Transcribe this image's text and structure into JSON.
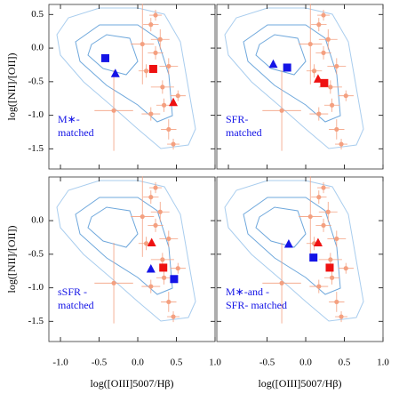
{
  "chart_data": [
    {
      "type": "scatter",
      "annotation": [
        "M∗-",
        "matched"
      ],
      "ylabel": "log([NII]/[OII])",
      "xlim": [
        -1.15,
        1.0
      ],
      "ylim": [
        -1.8,
        0.65
      ],
      "xticks": [
        {
          "value": -1.0,
          "label": "-1.0"
        },
        {
          "value": -0.5,
          "label": "-0.5"
        },
        {
          "value": 0.0,
          "label": "0.0"
        },
        {
          "value": 0.5,
          "label": "0.5"
        },
        {
          "value": 1.0,
          "label": "1.0"
        }
      ],
      "yticks": [
        {
          "value": 0.5,
          "label": "0.5"
        },
        {
          "value": 0.0,
          "label": "0.0"
        },
        {
          "value": -0.5,
          "label": "-0.5"
        },
        {
          "value": -1.0,
          "label": "-1.0"
        },
        {
          "value": -1.5,
          "label": "-1.5"
        }
      ],
      "series": [
        {
          "marker": "circle",
          "color": "#f4a080",
          "x": [
            0.23,
            0.17,
            0.29,
            0.06,
            0.23,
            0.4,
            0.11,
            0.32,
            0.52,
            0.34,
            -0.31,
            0.17,
            0.4,
            0.46
          ],
          "values": [
            0.49,
            0.35,
            0.13,
            0.06,
            -0.07,
            -0.27,
            -0.34,
            -0.58,
            -0.71,
            -0.85,
            -0.93,
            -0.98,
            -1.21,
            -1.43
          ],
          "xerr": [
            0.08,
            0.1,
            0.12,
            0.15,
            0.1,
            0.12,
            0.1,
            0.15,
            0.1,
            0.1,
            0.25,
            0.12,
            0.1,
            0.08
          ],
          "yerr": [
            0.08,
            0.1,
            0.15,
            0.6,
            0.1,
            0.12,
            0.1,
            0.1,
            0.08,
            0.1,
            0.6,
            0.1,
            0.15,
            0.08
          ]
        },
        {
          "marker": "square",
          "color": "#1414e6",
          "x": [
            -0.42
          ],
          "values": [
            -0.15
          ]
        },
        {
          "marker": "triangle",
          "color": "#1414e6",
          "x": [
            -0.29
          ],
          "values": [
            -0.38
          ]
        },
        {
          "marker": "square",
          "color": "#ee1111",
          "x": [
            0.2
          ],
          "values": [
            -0.31
          ]
        },
        {
          "marker": "triangle",
          "color": "#ee1111",
          "x": [
            0.46
          ],
          "values": [
            -0.81
          ]
        }
      ]
    },
    {
      "type": "scatter",
      "annotation": [
        "SFR-",
        "matched"
      ],
      "xlim": [
        -1.15,
        1.0
      ],
      "ylim": [
        -1.8,
        0.65
      ],
      "xticks": [
        {
          "value": -1.0,
          "label": "-1.0"
        },
        {
          "value": -0.5,
          "label": "-0.5"
        },
        {
          "value": 0.0,
          "label": "0.0"
        },
        {
          "value": 0.5,
          "label": "0.5"
        },
        {
          "value": 1.0,
          "label": "1.0"
        }
      ],
      "yticks": [
        {
          "value": 0.5,
          "label": "0.5"
        },
        {
          "value": 0.0,
          "label": "0.0"
        },
        {
          "value": -0.5,
          "label": "-0.5"
        },
        {
          "value": -1.0,
          "label": "-1.0"
        },
        {
          "value": -1.5,
          "label": "-1.5"
        }
      ],
      "series": [
        {
          "marker": "circle",
          "color": "#f4a080",
          "x": [
            0.23,
            0.17,
            0.29,
            0.06,
            0.23,
            0.4,
            0.11,
            0.32,
            0.52,
            0.34,
            -0.31,
            0.17,
            0.4,
            0.46
          ],
          "values": [
            0.49,
            0.35,
            0.13,
            0.06,
            -0.07,
            -0.27,
            -0.34,
            -0.58,
            -0.71,
            -0.85,
            -0.93,
            -0.98,
            -1.21,
            -1.43
          ],
          "xerr": [
            0.08,
            0.1,
            0.12,
            0.15,
            0.1,
            0.12,
            0.1,
            0.15,
            0.1,
            0.1,
            0.25,
            0.12,
            0.1,
            0.08
          ],
          "yerr": [
            0.08,
            0.1,
            0.15,
            0.6,
            0.1,
            0.12,
            0.1,
            0.1,
            0.08,
            0.1,
            0.6,
            0.1,
            0.15,
            0.08
          ]
        },
        {
          "marker": "square",
          "color": "#1414e6",
          "x": [
            -0.24
          ],
          "values": [
            -0.29
          ]
        },
        {
          "marker": "triangle",
          "color": "#1414e6",
          "x": [
            -0.42
          ],
          "values": [
            -0.24
          ]
        },
        {
          "marker": "square",
          "color": "#ee1111",
          "x": [
            0.24
          ],
          "values": [
            -0.52
          ]
        },
        {
          "marker": "triangle",
          "color": "#ee1111",
          "x": [
            0.16
          ],
          "values": [
            -0.46
          ]
        }
      ]
    },
    {
      "type": "scatter",
      "annotation": [
        "sSFR -",
        "matched"
      ],
      "xlabel": "log([OIII]5007/Hβ)",
      "ylabel": "log([NII]/[OII])",
      "xlim": [
        -1.15,
        1.0
      ],
      "ylim": [
        -1.8,
        0.65
      ],
      "xticks": [
        {
          "value": -1.0,
          "label": "-1.0"
        },
        {
          "value": -0.5,
          "label": "-0.5"
        },
        {
          "value": 0.0,
          "label": "0.0"
        },
        {
          "value": 0.5,
          "label": "0.5"
        },
        {
          "value": 1.0,
          "label": "1.0"
        }
      ],
      "yticks": [
        {
          "value": 0.0,
          "label": "0.0"
        },
        {
          "value": -0.5,
          "label": "-0.5"
        },
        {
          "value": -1.0,
          "label": "-1.0"
        },
        {
          "value": -1.5,
          "label": "-1.5"
        }
      ],
      "series": [
        {
          "marker": "circle",
          "color": "#f4a080",
          "x": [
            0.23,
            0.17,
            0.29,
            0.06,
            0.23,
            0.4,
            0.11,
            0.32,
            0.52,
            0.34,
            -0.31,
            0.17,
            0.4,
            0.46
          ],
          "values": [
            0.49,
            0.35,
            0.13,
            0.06,
            -0.07,
            -0.27,
            -0.34,
            -0.58,
            -0.71,
            -0.85,
            -0.93,
            -0.98,
            -1.21,
            -1.43
          ],
          "xerr": [
            0.08,
            0.1,
            0.12,
            0.15,
            0.1,
            0.12,
            0.1,
            0.15,
            0.1,
            0.1,
            0.25,
            0.12,
            0.1,
            0.08
          ],
          "yerr": [
            0.08,
            0.1,
            0.15,
            0.6,
            0.1,
            0.12,
            0.1,
            0.1,
            0.08,
            0.1,
            0.6,
            0.1,
            0.15,
            0.08
          ]
        },
        {
          "marker": "square",
          "color": "#1414e6",
          "x": [
            0.47
          ],
          "values": [
            -0.87
          ]
        },
        {
          "marker": "triangle",
          "color": "#1414e6",
          "x": [
            0.17
          ],
          "values": [
            -0.72
          ]
        },
        {
          "marker": "square",
          "color": "#ee1111",
          "x": [
            0.33
          ],
          "values": [
            -0.7
          ]
        },
        {
          "marker": "triangle",
          "color": "#ee1111",
          "x": [
            0.18
          ],
          "values": [
            -0.33
          ]
        }
      ]
    },
    {
      "type": "scatter",
      "annotation": [
        "M∗-and -",
        "SFR- matched"
      ],
      "xlabel": "log([OIII]5007/Hβ)",
      "xlim": [
        -1.15,
        1.0
      ],
      "ylim": [
        -1.8,
        0.65
      ],
      "xticks": [
        {
          "value": -0.5,
          "label": "-0.5"
        },
        {
          "value": 0.0,
          "label": "0.0"
        },
        {
          "value": 0.5,
          "label": "0.5"
        },
        {
          "value": 1.0,
          "label": "1.0"
        }
      ],
      "yticks": [
        {
          "value": 0.0,
          "label": "0.0"
        },
        {
          "value": -0.5,
          "label": "-0.5"
        },
        {
          "value": -1.0,
          "label": "-1.0"
        },
        {
          "value": -1.5,
          "label": "-1.5"
        }
      ],
      "series": [
        {
          "marker": "circle",
          "color": "#f4a080",
          "x": [
            0.23,
            0.17,
            0.29,
            0.06,
            0.23,
            0.4,
            0.11,
            0.32,
            0.52,
            0.34,
            -0.31,
            0.17,
            0.4,
            0.46
          ],
          "values": [
            0.49,
            0.35,
            0.13,
            0.06,
            -0.07,
            -0.27,
            -0.34,
            -0.58,
            -0.71,
            -0.85,
            -0.93,
            -0.98,
            -1.21,
            -1.43
          ],
          "xerr": [
            0.08,
            0.1,
            0.12,
            0.15,
            0.1,
            0.12,
            0.1,
            0.15,
            0.1,
            0.1,
            0.25,
            0.12,
            0.1,
            0.08
          ],
          "yerr": [
            0.08,
            0.1,
            0.15,
            0.6,
            0.1,
            0.12,
            0.1,
            0.1,
            0.08,
            0.1,
            0.6,
            0.1,
            0.15,
            0.08
          ]
        },
        {
          "marker": "square",
          "color": "#1414e6",
          "x": [
            0.1
          ],
          "values": [
            -0.55
          ]
        },
        {
          "marker": "triangle",
          "color": "#1414e6",
          "x": [
            -0.22
          ],
          "values": [
            -0.35
          ]
        },
        {
          "marker": "square",
          "color": "#ee1111",
          "x": [
            0.31
          ],
          "values": [
            -0.7
          ]
        },
        {
          "marker": "triangle",
          "color": "#ee1111",
          "x": [
            0.16
          ],
          "values": [
            -0.33
          ]
        }
      ]
    }
  ]
}
